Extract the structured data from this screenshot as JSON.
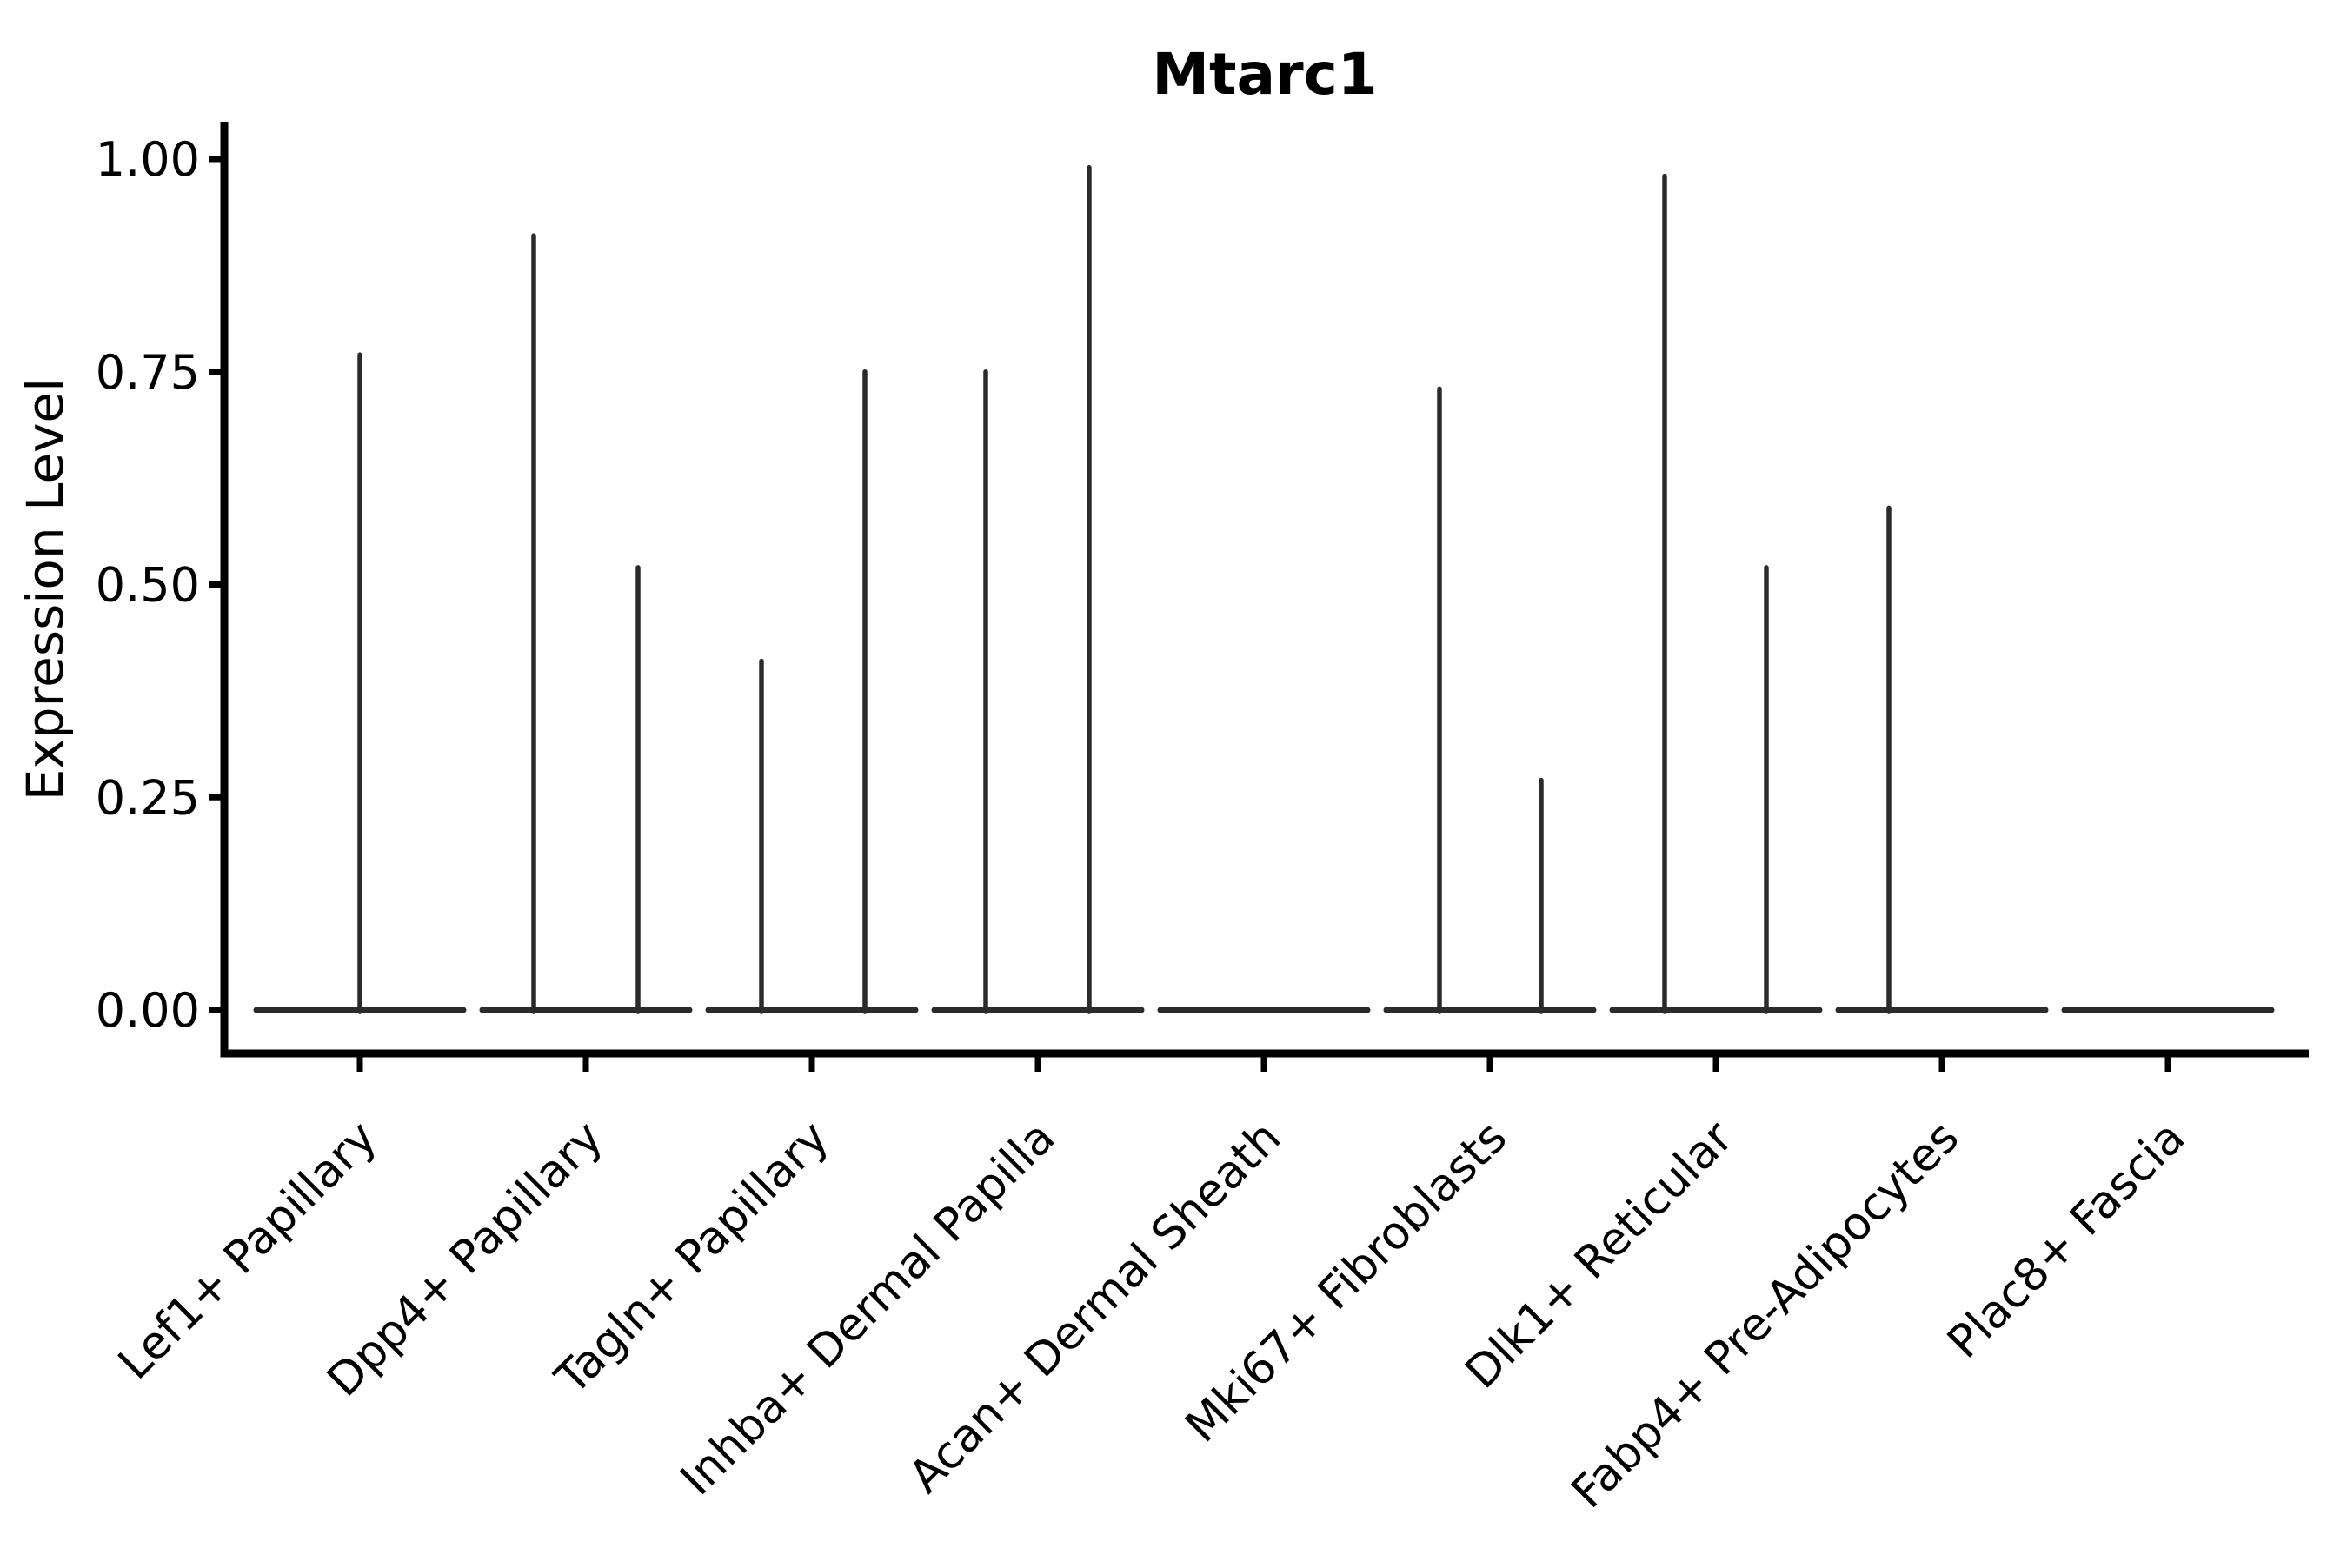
{
  "chart_data": {
    "type": "violin",
    "title": "Mtarc1",
    "ylabel": "Expression Level",
    "xlabel": "",
    "ylim": [
      0,
      1.05
    ],
    "grid": false,
    "legend": "none",
    "yticks": [
      {
        "label": "0.00",
        "value": 0.0
      },
      {
        "label": "0.25",
        "value": 0.25
      },
      {
        "label": "0.50",
        "value": 0.5
      },
      {
        "label": "0.75",
        "value": 0.75
      },
      {
        "label": "1.00",
        "value": 1.0
      }
    ],
    "categories": [
      "Lef1+ Papillary",
      "Dpp4+ Papillary",
      "Tagln+ Papillary",
      "Inhba+ Dermal Papilla",
      "Acan+ Dermal Sheath",
      "Mki67+ Fibroblasts",
      "Dlk1+ Reticular",
      "Fabp4+ Pre-Adipocytes",
      "Plac8+ Fascia"
    ],
    "violins": [
      {
        "category": "Lef1+ Papillary",
        "base_value": 0.0,
        "spikes": [
          {
            "offset": 0,
            "value": 0.77
          }
        ]
      },
      {
        "category": "Dpp4+ Papillary",
        "base_value": 0.0,
        "spikes": [
          {
            "offset": -60,
            "value": 0.91
          },
          {
            "offset": 60,
            "value": 0.52
          }
        ]
      },
      {
        "category": "Tagln+ Papillary",
        "base_value": 0.0,
        "spikes": [
          {
            "offset": -58,
            "value": 0.41
          },
          {
            "offset": 61,
            "value": 0.75
          }
        ]
      },
      {
        "category": "Inhba+ Dermal Papilla",
        "base_value": 0.0,
        "spikes": [
          {
            "offset": -60,
            "value": 0.75
          },
          {
            "offset": 59,
            "value": 0.99
          }
        ]
      },
      {
        "category": "Acan+ Dermal Sheath",
        "base_value": 0.0,
        "spikes": []
      },
      {
        "category": "Mki67+ Fibroblasts",
        "base_value": 0.0,
        "spikes": [
          {
            "offset": -58,
            "value": 0.73
          },
          {
            "offset": 59,
            "value": 0.27
          }
        ]
      },
      {
        "category": "Dlk1+ Reticular",
        "base_value": 0.0,
        "spikes": [
          {
            "offset": -59,
            "value": 0.98
          },
          {
            "offset": 58,
            "value": 0.52
          }
        ]
      },
      {
        "category": "Fabp4+ Pre-Adipocytes",
        "base_value": 0.0,
        "spikes": [
          {
            "offset": -61,
            "value": 0.59
          }
        ]
      },
      {
        "category": "Plac8+ Fascia",
        "base_value": 0.0,
        "spikes": []
      }
    ],
    "colors": {
      "violin_line": "#2b2b2b",
      "axis": "#000000",
      "text": "#000000",
      "background": "#ffffff"
    }
  }
}
